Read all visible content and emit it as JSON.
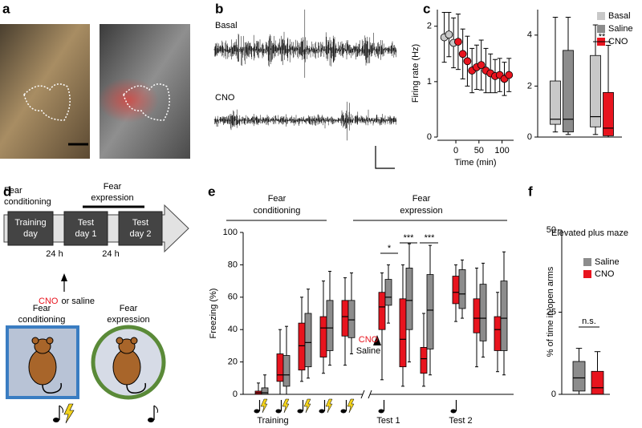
{
  "panel_labels": [
    "a",
    "b",
    "c",
    "d",
    "e",
    "f"
  ],
  "traces": {
    "labels": [
      "Basal",
      "CNO"
    ]
  },
  "diagram": {
    "phase_top": [
      [
        "Fear",
        "conditioning"
      ],
      [
        "Fear",
        "expression"
      ]
    ],
    "days": [
      [
        "Training",
        "day"
      ],
      [
        "Test",
        "day 1"
      ],
      [
        "Test",
        "day 2"
      ]
    ],
    "intervals": [
      "24 h",
      "24 h"
    ],
    "injection": [
      "CNO",
      "or saline"
    ],
    "contexts": [
      [
        "Fear",
        "conditioning"
      ],
      [
        "Fear",
        "expression"
      ]
    ]
  },
  "chart_data": [
    {
      "type": "line",
      "xlabel": "Time (min)",
      "ylabel": "Firing rate (Hz)",
      "xlim": [
        -40,
        125
      ],
      "ylim": [
        0,
        2.3
      ],
      "xticks": [
        0,
        50,
        100
      ],
      "yticks": [
        0,
        1,
        2
      ],
      "series": [
        {
          "color": "#c8c8c8",
          "x": [
            -25,
            -15,
            -5
          ],
          "values": [
            1.8,
            1.85,
            1.7
          ],
          "errors": [
            0.45,
            0.4,
            0.45
          ]
        },
        {
          "color": "#e8141e",
          "x": [
            5,
            15,
            25,
            35,
            45,
            55,
            65,
            75,
            85,
            95,
            105,
            115
          ],
          "values": [
            1.72,
            1.5,
            1.37,
            1.2,
            1.26,
            1.3,
            1.2,
            1.15,
            1.1,
            1.12,
            1.05,
            1.12
          ],
          "errors": [
            0.5,
            0.45,
            0.45,
            0.4,
            0.4,
            0.45,
            0.4,
            0.35,
            0.3,
            0.3,
            0.3,
            0.3
          ]
        }
      ]
    },
    {
      "type": "box",
      "ylim": [
        0,
        5
      ],
      "yticks": [
        0,
        2,
        4
      ],
      "categories": [
        null,
        null
      ],
      "series": [
        {
          "name": "Basal",
          "color": "#c8c8c8",
          "values": [
            {
              "min": 0.2,
              "q1": 0.5,
              "median": 0.7,
              "q3": 2.2,
              "max": 4.7
            },
            {
              "min": 0.1,
              "q1": 0.4,
              "median": 0.8,
              "q3": 3.2,
              "max": 4.4
            }
          ]
        },
        {
          "name": "Saline",
          "color": "#8c8c8c",
          "values": [
            {
              "min": 0.1,
              "q1": 0.2,
              "median": 0.7,
              "q3": 3.4,
              "max": 4.7
            },
            null
          ]
        },
        {
          "name": "CNO",
          "color": "#e8141e",
          "values": [
            null,
            {
              "min": 0,
              "q1": 0.05,
              "median": 0.35,
              "q3": 1.75,
              "max": 3.6
            }
          ]
        }
      ],
      "annotations": [
        "**"
      ]
    },
    {
      "type": "box",
      "ylabel": "Freezing (%)",
      "ylim": [
        0,
        100
      ],
      "yticks": [
        0,
        20,
        40,
        60,
        80,
        100
      ],
      "categories": [
        null,
        null,
        null,
        null,
        null,
        null,
        null,
        null,
        null,
        null,
        null
      ],
      "series": [
        {
          "name": "CNO",
          "color": "#e8141e",
          "values": [
            {
              "min": 0,
              "q1": 0,
              "median": 1,
              "q3": 2,
              "max": 7
            },
            {
              "min": 0,
              "q1": 8,
              "median": 12,
              "q3": 25,
              "max": 40
            },
            {
              "min": 8,
              "q1": 15,
              "median": 30,
              "q3": 44,
              "max": 60
            },
            {
              "min": 13,
              "q1": 23,
              "median": 41,
              "q3": 48,
              "max": 70
            },
            {
              "min": 18,
              "q1": 36,
              "median": 48,
              "q3": 58,
              "max": 72
            },
            {
              "min": 9,
              "q1": 40,
              "median": 54,
              "q3": 63,
              "max": 75
            },
            {
              "min": 5,
              "q1": 17,
              "median": 34,
              "q3": 59,
              "max": 80
            },
            {
              "min": 5,
              "q1": 13,
              "median": 22,
              "q3": 29,
              "max": 50
            },
            {
              "min": 45,
              "q1": 56,
              "median": 63,
              "q3": 73,
              "max": 80
            },
            {
              "min": 17,
              "q1": 38,
              "median": 47,
              "q3": 59,
              "max": 78
            },
            {
              "min": 14,
              "q1": 27,
              "median": 40,
              "q3": 48,
              "max": 63
            }
          ]
        },
        {
          "name": "Saline",
          "color": "#8c8c8c",
          "values": [
            {
              "min": 0,
              "q1": 0,
              "median": 1,
              "q3": 4,
              "max": 12
            },
            {
              "min": 0,
              "q1": 5,
              "median": 12,
              "q3": 24,
              "max": 42
            },
            {
              "min": 10,
              "q1": 17,
              "median": 32,
              "q3": 50,
              "max": 65
            },
            {
              "min": 18,
              "q1": 27,
              "median": 41,
              "q3": 58,
              "max": 76
            },
            {
              "min": 25,
              "q1": 35,
              "median": 46,
              "q3": 58,
              "max": 75
            },
            {
              "min": 44,
              "q1": 55,
              "median": 60,
              "q3": 71,
              "max": 80
            },
            {
              "min": 20,
              "q1": 40,
              "median": 58,
              "q3": 78,
              "max": 93
            },
            {
              "min": 12,
              "q1": 28,
              "median": 52,
              "q3": 74,
              "max": 92
            },
            {
              "min": 47,
              "q1": 53,
              "median": 62,
              "q3": 77,
              "max": 83
            },
            {
              "min": 23,
              "q1": 33,
              "median": 47,
              "q3": 68,
              "max": 81
            },
            {
              "min": 12,
              "q1": 27,
              "median": 47,
              "q3": 70,
              "max": 88
            }
          ]
        }
      ],
      "group_labels": [
        "Training",
        "Test 1",
        "Test 2"
      ],
      "phase_labels": [
        [
          "Fear",
          "conditioning"
        ],
        [
          "Fear",
          "expression"
        ]
      ],
      "annotations": [
        "*",
        "***",
        "***"
      ]
    },
    {
      "type": "box",
      "title": "Elevated plus maze",
      "ylabel": "% of time in open arms",
      "ylim": [
        0,
        50
      ],
      "yticks": [
        0,
        25,
        50
      ],
      "categories": [
        null
      ],
      "series": [
        {
          "name": "Saline",
          "color": "#8c8c8c",
          "values": [
            {
              "min": 0,
              "q1": 1,
              "median": 5,
              "q3": 10,
              "max": 14
            }
          ]
        },
        {
          "name": "CNO",
          "color": "#e8141e",
          "values": [
            {
              "min": 0,
              "q1": 0,
              "median": 2,
              "q3": 7,
              "max": 13
            }
          ]
        }
      ],
      "annotations": [
        "n.s."
      ]
    }
  ]
}
